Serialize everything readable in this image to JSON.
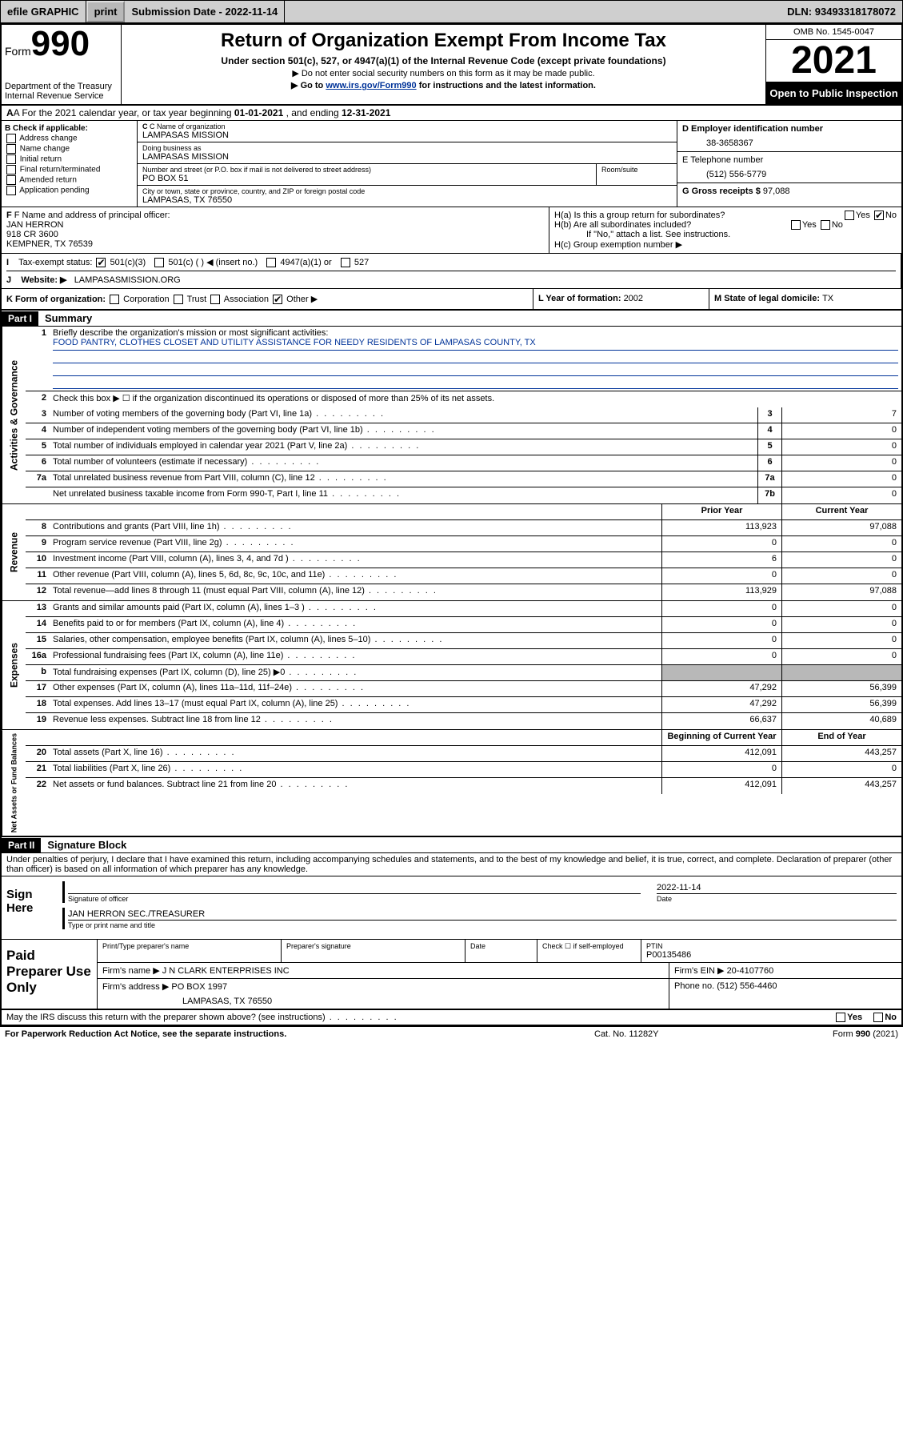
{
  "topbar": {
    "efile": "efile GRAPHIC",
    "print": "print",
    "subdate_label": "Submission Date - ",
    "subdate": "2022-11-14",
    "dln_label": "DLN: ",
    "dln": "93493318178072"
  },
  "header": {
    "form_prefix": "Form",
    "form_num": "990",
    "dept": "Department of the Treasury\nInternal Revenue Service",
    "title": "Return of Organization Exempt From Income Tax",
    "sub": "Under section 501(c), 527, or 4947(a)(1) of the Internal Revenue Code (except private foundations)",
    "note1": "▶ Do not enter social security numbers on this form as it may be made public.",
    "note2_a": "▶ Go to ",
    "note2_link": "www.irs.gov/Form990",
    "note2_b": " for instructions and the latest information.",
    "omb": "OMB No. 1545-0047",
    "year": "2021",
    "openpub": "Open to Public Inspection"
  },
  "A": {
    "text_a": "A For the 2021 calendar year, or tax year beginning ",
    "begin": "01-01-2021",
    "text_b": " , and ending ",
    "end": "12-31-2021"
  },
  "B": {
    "label": "B Check if applicable:",
    "items": [
      "Address change",
      "Name change",
      "Initial return",
      "Final return/terminated",
      "Amended return",
      "Application pending"
    ]
  },
  "C": {
    "name_label": "C Name of organization",
    "name": "LAMPASAS MISSION",
    "dba_label": "Doing business as",
    "dba": "LAMPASAS MISSION",
    "street_label": "Number and street (or P.O. box if mail is not delivered to street address)",
    "room_label": "Room/suite",
    "street": "PO BOX 51",
    "city_label": "City or town, state or province, country, and ZIP or foreign postal code",
    "city": "LAMPASAS, TX  76550"
  },
  "D": {
    "label": "D Employer identification number",
    "val": "38-3658367"
  },
  "E": {
    "label": "E Telephone number",
    "val": "(512) 556-5779"
  },
  "G": {
    "label": "G Gross receipts $ ",
    "val": "97,088"
  },
  "F": {
    "label": "F Name and address of principal officer:",
    "name": "JAN HERRON",
    "street": "918 CR 3600",
    "city": "KEMPNER, TX  76539"
  },
  "H": {
    "a": "H(a)  Is this a group return for subordinates?",
    "b": "H(b)  Are all subordinates included?",
    "b_note": "If \"No,\" attach a list. See instructions.",
    "c": "H(c)  Group exemption number ▶",
    "yes": "Yes",
    "no": "No"
  },
  "I": {
    "label": "Tax-exempt status:",
    "opts": [
      "501(c)(3)",
      "501(c) (  ) ◀ (insert no.)",
      "4947(a)(1) or",
      "527"
    ]
  },
  "J": {
    "label": "Website: ▶",
    "val": "LAMPASASMISSION.ORG"
  },
  "K": {
    "label": "K Form of organization:",
    "opts": [
      "Corporation",
      "Trust",
      "Association",
      "Other ▶"
    ]
  },
  "L": {
    "label": "L Year of formation: ",
    "val": "2002"
  },
  "M": {
    "label": "M State of legal domicile: ",
    "val": "TX"
  },
  "part1": {
    "hdr": "Part I",
    "title": "Summary"
  },
  "summary": {
    "q1_label": "Briefly describe the organization's mission or most significant activities:",
    "q1_val": "FOOD PANTRY, CLOTHES CLOSET AND UTILITY ASSISTANCE FOR NEEDY RESIDENTS OF LAMPASAS COUNTY, TX",
    "q2": "Check this box ▶ ☐  if the organization discontinued its operations or disposed of more than 25% of its net assets.",
    "rows_gov": [
      {
        "n": "3",
        "d": "Number of voting members of the governing body (Part VI, line 1a)",
        "b": "3",
        "v": "7"
      },
      {
        "n": "4",
        "d": "Number of independent voting members of the governing body (Part VI, line 1b)",
        "b": "4",
        "v": "0"
      },
      {
        "n": "5",
        "d": "Total number of individuals employed in calendar year 2021 (Part V, line 2a)",
        "b": "5",
        "v": "0"
      },
      {
        "n": "6",
        "d": "Total number of volunteers (estimate if necessary)",
        "b": "6",
        "v": "0"
      },
      {
        "n": "7a",
        "d": "Total unrelated business revenue from Part VIII, column (C), line 12",
        "b": "7a",
        "v": "0"
      },
      {
        "n": "",
        "d": "Net unrelated business taxable income from Form 990-T, Part I, line 11",
        "b": "7b",
        "v": "0"
      }
    ],
    "col_prior": "Prior Year",
    "col_current": "Current Year",
    "rows_rev": [
      {
        "n": "8",
        "d": "Contributions and grants (Part VIII, line 1h)",
        "p": "113,923",
        "c": "97,088"
      },
      {
        "n": "9",
        "d": "Program service revenue (Part VIII, line 2g)",
        "p": "0",
        "c": "0"
      },
      {
        "n": "10",
        "d": "Investment income (Part VIII, column (A), lines 3, 4, and 7d )",
        "p": "6",
        "c": "0"
      },
      {
        "n": "11",
        "d": "Other revenue (Part VIII, column (A), lines 5, 6d, 8c, 9c, 10c, and 11e)",
        "p": "0",
        "c": "0"
      },
      {
        "n": "12",
        "d": "Total revenue—add lines 8 through 11 (must equal Part VIII, column (A), line 12)",
        "p": "113,929",
        "c": "97,088"
      }
    ],
    "rows_exp": [
      {
        "n": "13",
        "d": "Grants and similar amounts paid (Part IX, column (A), lines 1–3 )",
        "p": "0",
        "c": "0"
      },
      {
        "n": "14",
        "d": "Benefits paid to or for members (Part IX, column (A), line 4)",
        "p": "0",
        "c": "0"
      },
      {
        "n": "15",
        "d": "Salaries, other compensation, employee benefits (Part IX, column (A), lines 5–10)",
        "p": "0",
        "c": "0"
      },
      {
        "n": "16a",
        "d": "Professional fundraising fees (Part IX, column (A), line 11e)",
        "p": "0",
        "c": "0"
      },
      {
        "n": "b",
        "d": "Total fundraising expenses (Part IX, column (D), line 25) ▶0",
        "p": "",
        "c": "",
        "grey": true
      },
      {
        "n": "17",
        "d": "Other expenses (Part IX, column (A), lines 11a–11d, 11f–24e)",
        "p": "47,292",
        "c": "56,399"
      },
      {
        "n": "18",
        "d": "Total expenses. Add lines 13–17 (must equal Part IX, column (A), line 25)",
        "p": "47,292",
        "c": "56,399"
      },
      {
        "n": "19",
        "d": "Revenue less expenses. Subtract line 18 from line 12",
        "p": "66,637",
        "c": "40,689"
      }
    ],
    "col_begin": "Beginning of Current Year",
    "col_end": "End of Year",
    "rows_net": [
      {
        "n": "20",
        "d": "Total assets (Part X, line 16)",
        "p": "412,091",
        "c": "443,257"
      },
      {
        "n": "21",
        "d": "Total liabilities (Part X, line 26)",
        "p": "0",
        "c": "0"
      },
      {
        "n": "22",
        "d": "Net assets or fund balances. Subtract line 21 from line 20",
        "p": "412,091",
        "c": "443,257"
      }
    ],
    "side_gov": "Activities & Governance",
    "side_rev": "Revenue",
    "side_exp": "Expenses",
    "side_net": "Net Assets or Fund Balances"
  },
  "part2": {
    "hdr": "Part II",
    "title": "Signature Block"
  },
  "penalties": "Under penalties of perjury, I declare that I have examined this return, including accompanying schedules and statements, and to the best of my knowledge and belief, it is true, correct, and complete. Declaration of preparer (other than officer) is based on all information of which preparer has any knowledge.",
  "sign": {
    "lbl": "Sign Here",
    "sig_lbl": "Signature of officer",
    "date_lbl": "Date",
    "date": "2022-11-14",
    "name": "JAN HERRON SEC./TREASURER",
    "name_lbl": "Type or print name and title"
  },
  "paid": {
    "lbl": "Paid Preparer Use Only",
    "h": [
      "Print/Type preparer's name",
      "Preparer's signature",
      "Date"
    ],
    "check_lbl": "Check ☐ if self-employed",
    "ptin_lbl": "PTIN",
    "ptin": "P00135486",
    "firm_name_lbl": "Firm's name    ▶ ",
    "firm_name": "J N CLARK ENTERPRISES INC",
    "firm_ein_lbl": "Firm's EIN ▶ ",
    "firm_ein": "20-4107760",
    "firm_addr_lbl": "Firm's address ▶ ",
    "firm_addr1": "PO BOX 1997",
    "firm_addr2": "LAMPASAS, TX  76550",
    "phone_lbl": "Phone no. ",
    "phone": "(512) 556-4460"
  },
  "may": {
    "q": "May the IRS discuss this return with the preparer shown above? (see instructions)",
    "yes": "Yes",
    "no": "No"
  },
  "footer": {
    "l": "For Paperwork Reduction Act Notice, see the separate instructions.",
    "m": "Cat. No. 11282Y",
    "r_a": "Form ",
    "r_b": "990",
    "r_c": " (2021)"
  },
  "colors": {
    "grey": "#b8b8b8",
    "linkblue": "#003399"
  }
}
